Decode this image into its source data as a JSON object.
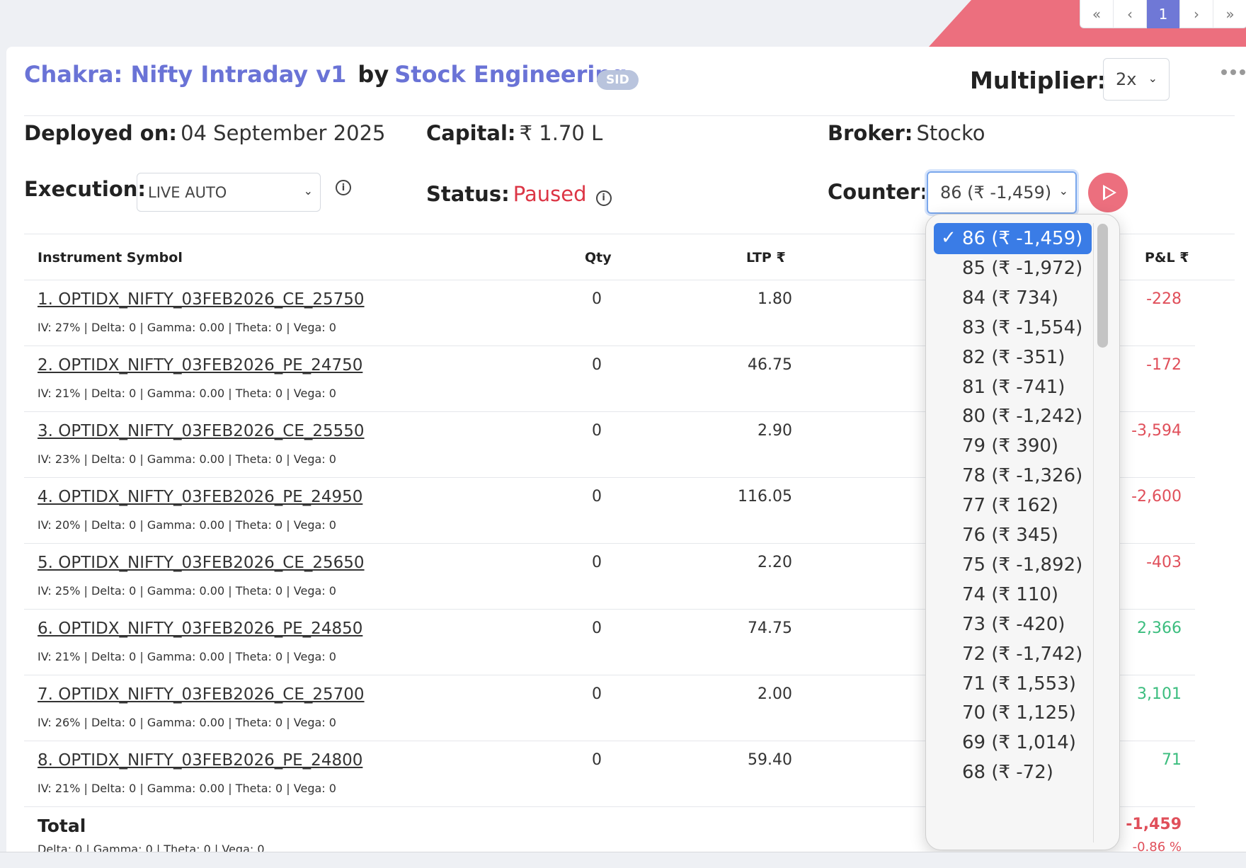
{
  "pager": [
    "«",
    "‹",
    "1",
    "›",
    "»"
  ],
  "header": {
    "strategy": "Chakra: Nifty Intraday v1",
    "by": "by",
    "author": "Stock Engineering",
    "badge": "SID",
    "multiplier_label": "Multiplier:",
    "multiplier_value": "2x"
  },
  "info": {
    "deployed_label": "Deployed on:",
    "deployed_value": "04 September 2025",
    "capital_label": "Capital:",
    "capital_value": "₹ 1.70 L",
    "broker_label": "Broker:",
    "broker_value": "Stocko",
    "execution_label": "Execution:",
    "execution_value": "LIVE AUTO",
    "status_label": "Status:",
    "status_value": "Paused",
    "counter_label": "Counter:",
    "counter_value": "86 (₹ -1,459)",
    "info_glyph": "i"
  },
  "table": {
    "headers": {
      "symbol": "Instrument Symbol",
      "qty": "Qty",
      "ltp": "LTP ₹",
      "pnl": "P&L ₹"
    },
    "rows": [
      {
        "symbol": "1. OPTIDX_NIFTY_03FEB2026_CE_25750",
        "greeks": "IV: 27% | Delta: 0 | Gamma: 0.00 | Theta: 0 | Vega: 0",
        "qty": "0",
        "ltp": "1.80",
        "pnl": "-228"
      },
      {
        "symbol": "2. OPTIDX_NIFTY_03FEB2026_PE_24750",
        "greeks": "IV: 21% | Delta: 0 | Gamma: 0.00 | Theta: 0 | Vega: 0",
        "qty": "0",
        "ltp": "46.75",
        "pnl": "-172"
      },
      {
        "symbol": "3. OPTIDX_NIFTY_03FEB2026_CE_25550",
        "greeks": "IV: 23% | Delta: 0 | Gamma: 0.00 | Theta: 0 | Vega: 0",
        "qty": "0",
        "ltp": "2.90",
        "pnl": "-3,594"
      },
      {
        "symbol": "4. OPTIDX_NIFTY_03FEB2026_PE_24950",
        "greeks": "IV: 20% | Delta: 0 | Gamma: 0.00 | Theta: 0 | Vega: 0",
        "qty": "0",
        "ltp": "116.05",
        "pnl": "-2,600"
      },
      {
        "symbol": "5. OPTIDX_NIFTY_03FEB2026_CE_25650",
        "greeks": "IV: 25% | Delta: 0 | Gamma: 0.00 | Theta: 0 | Vega: 0",
        "qty": "0",
        "ltp": "2.20",
        "pnl": "-403"
      },
      {
        "symbol": "6. OPTIDX_NIFTY_03FEB2026_PE_24850",
        "greeks": "IV: 21% | Delta: 0 | Gamma: 0.00 | Theta: 0 | Vega: 0",
        "qty": "0",
        "ltp": "74.75",
        "pnl": "2,366"
      },
      {
        "symbol": "7. OPTIDX_NIFTY_03FEB2026_CE_25700",
        "greeks": "IV: 26% | Delta: 0 | Gamma: 0.00 | Theta: 0 | Vega: 0",
        "qty": "0",
        "ltp": "2.00",
        "pnl": "3,101"
      },
      {
        "symbol": "8. OPTIDX_NIFTY_03FEB2026_PE_24800",
        "greeks": "IV: 21% | Delta: 0 | Gamma: 0.00 | Theta: 0 | Vega: 0",
        "qty": "0",
        "ltp": "59.40",
        "pnl": "71"
      }
    ],
    "total": {
      "label": "Total",
      "greeks": "Delta: 0 | Gamma: 0  | Theta: 0 | Vega: 0",
      "pnl": "-1,459",
      "pnl_pct": "-0.86 %"
    }
  },
  "counter_dropdown": {
    "check_glyph": "✓",
    "options": [
      "86 (₹ -1,459)",
      "85 (₹ -1,972)",
      "84 (₹ 734)",
      "83 (₹ -1,554)",
      "82 (₹ -351)",
      "81 (₹ -741)",
      "80 (₹ -1,242)",
      "79 (₹ 390)",
      "78 (₹ -1,326)",
      "77 (₹ 162)",
      "76 (₹ 345)",
      "75 (₹ -1,892)",
      "74 (₹ 110)",
      "73 (₹ -420)",
      "72 (₹ -1,742)",
      "71 (₹ 1,553)",
      "70 (₹ 1,125)",
      "69 (₹ 1,014)",
      "68 (₹ -72)"
    ]
  },
  "colors": {
    "accent": "#6a73d6",
    "negative": "#e04f5a",
    "positive": "#3bbd7e",
    "play": "#ec6f7e",
    "selected": "#3a7ce6"
  }
}
